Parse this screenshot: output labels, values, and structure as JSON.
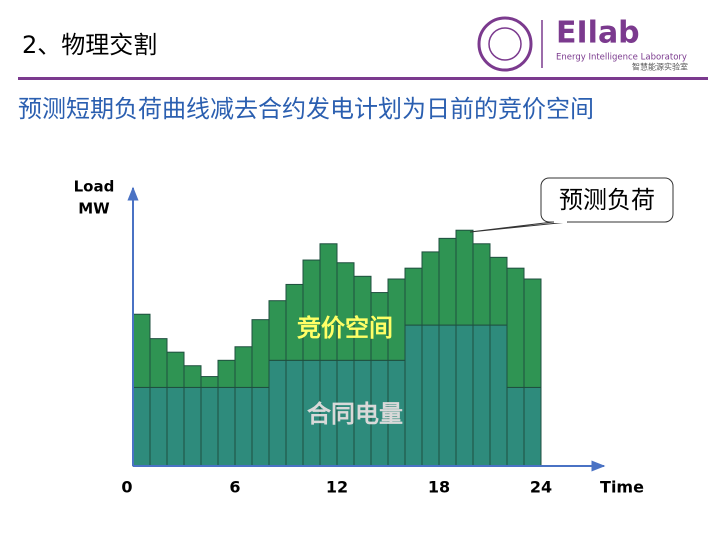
{
  "header": {
    "title": "2、物理交割",
    "logo": "EIlab",
    "lab_en": "Energy Intelligence Laboratory",
    "lab_cn": "智慧能源实验室"
  },
  "subtitle": "预测短期负荷曲线减去合约发电计划为日前的竞价空间",
  "chart_data": {
    "type": "stacked-step-bar",
    "annotation": "预测负荷",
    "ylabel": [
      "Load",
      "MW"
    ],
    "xlabel": "Time",
    "x": [
      0,
      1,
      2,
      3,
      4,
      5,
      6,
      7,
      8,
      9,
      10,
      11,
      12,
      13,
      14,
      15,
      16,
      17,
      18,
      19,
      20,
      21,
      22,
      23
    ],
    "xlim": [
      0,
      24
    ],
    "xticks": [
      0,
      6,
      12,
      18,
      24
    ],
    "ylim": [
      0,
      100
    ],
    "series": [
      {
        "name": "合同电量",
        "color": "#2e8b7c",
        "label_color": "#d9d9d9",
        "values": [
          29,
          29,
          29,
          29,
          29,
          29,
          29,
          29,
          39,
          39,
          39,
          39,
          39,
          39,
          39,
          39,
          52,
          52,
          52,
          52,
          52,
          52,
          29,
          29
        ]
      },
      {
        "name": "竞价空间",
        "color": "#2f9453",
        "label_color": "#ffff66",
        "values": [
          27,
          18,
          13,
          8,
          4,
          10,
          15,
          25,
          22,
          28,
          37,
          43,
          36,
          31,
          25,
          30,
          21,
          27,
          32,
          35,
          30,
          25,
          44,
          40
        ]
      }
    ]
  }
}
